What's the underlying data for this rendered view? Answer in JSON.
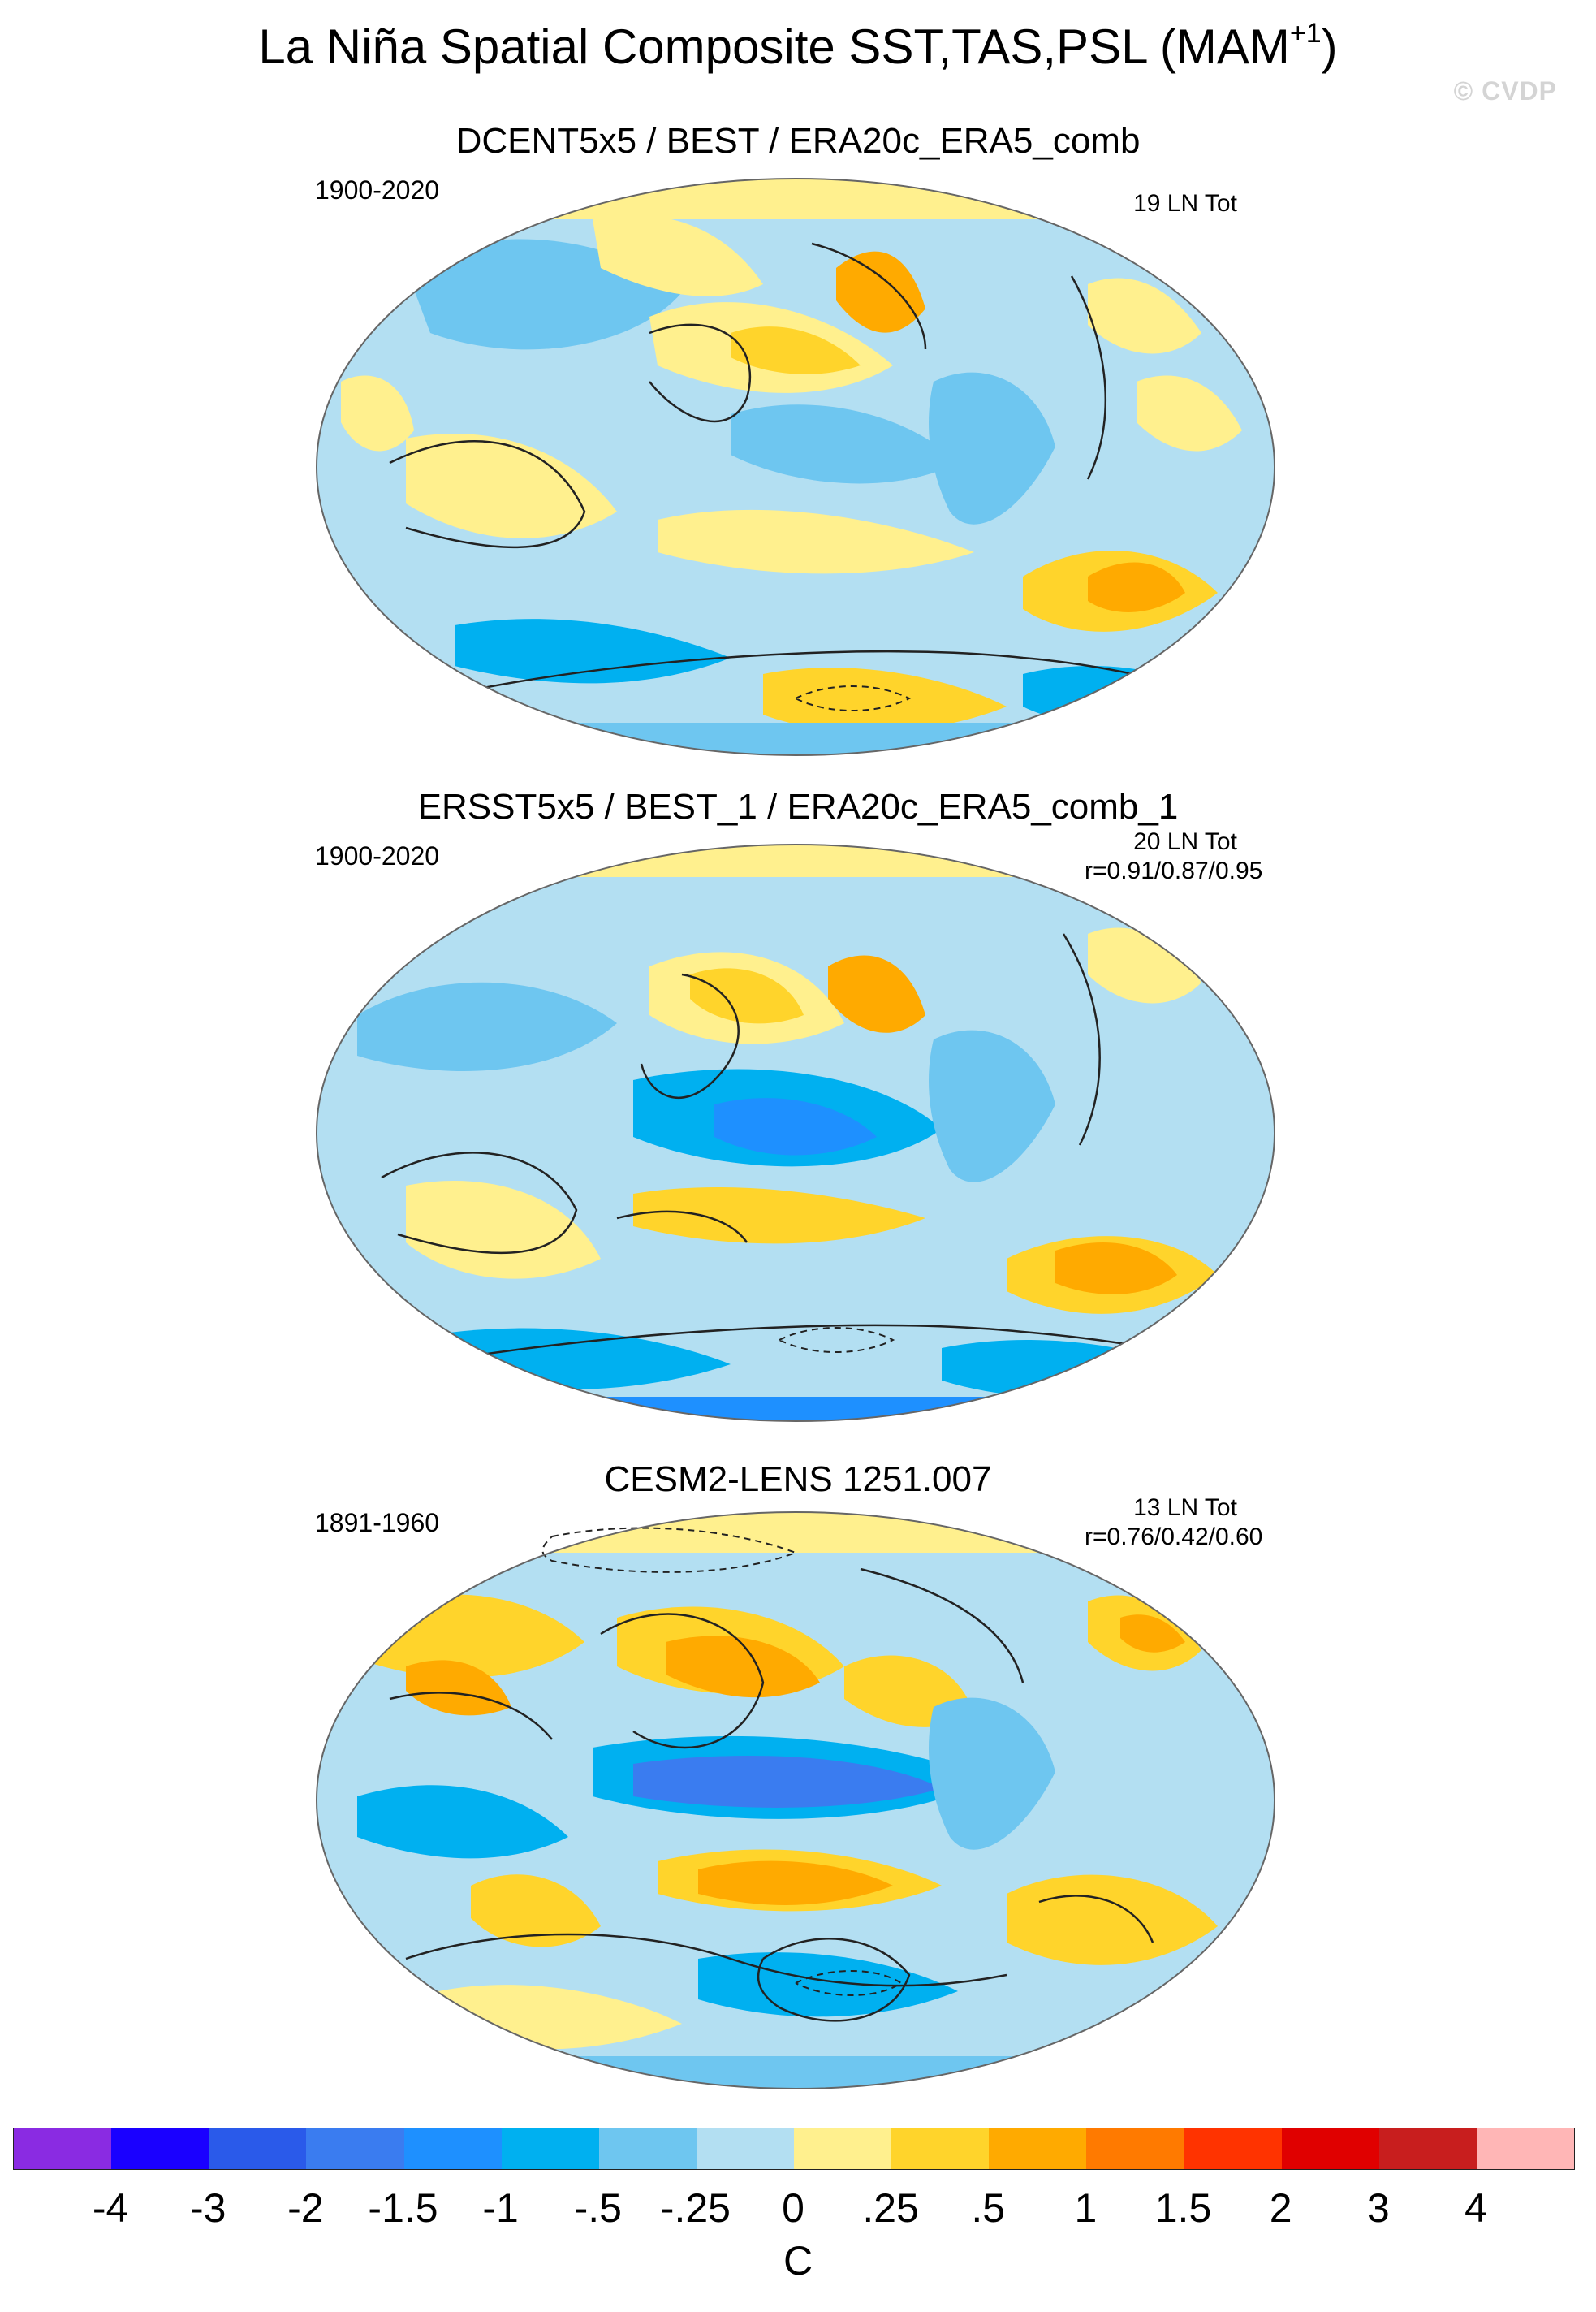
{
  "title": {
    "main": "La Niña Spatial Composite SST,TAS,PSL (MAM",
    "sup": "+1",
    "close": ")"
  },
  "watermark": "© CVDP",
  "panels": [
    {
      "title": "DCENT5x5 / BEST / ERA20c_ERA5_comb",
      "period": "1900-2020",
      "count": "19 LN Tot",
      "corr": ""
    },
    {
      "title": "ERSST5x5 / BEST_1 / ERA20c_ERA5_comb_1",
      "period": "1900-2020",
      "count": "20 LN Tot",
      "corr": "r=0.91/0.87/0.95"
    },
    {
      "title": "CESM2-LENS 1251.007",
      "period": "1891-1960",
      "count": "13 LN Tot",
      "corr": "r=0.76/0.42/0.60"
    }
  ],
  "colorbar": {
    "colors": [
      "#8a2be2",
      "#1a00ff",
      "#2a5aea",
      "#3a7cf0",
      "#1e90ff",
      "#00b0f0",
      "#6ec6f0",
      "#b3dff2",
      "#fff08e",
      "#ffd42b",
      "#ffaa00",
      "#ff7a00",
      "#ff3300",
      "#e00000",
      "#c81e1e",
      "#ffb6b6"
    ],
    "labels": [
      "-4",
      "-3",
      "-2",
      "-1.5",
      "-1",
      "-.5",
      "-.25",
      "0",
      ".25",
      ".5",
      "1",
      "1.5",
      "2",
      "3",
      "4"
    ],
    "units": "C"
  }
}
